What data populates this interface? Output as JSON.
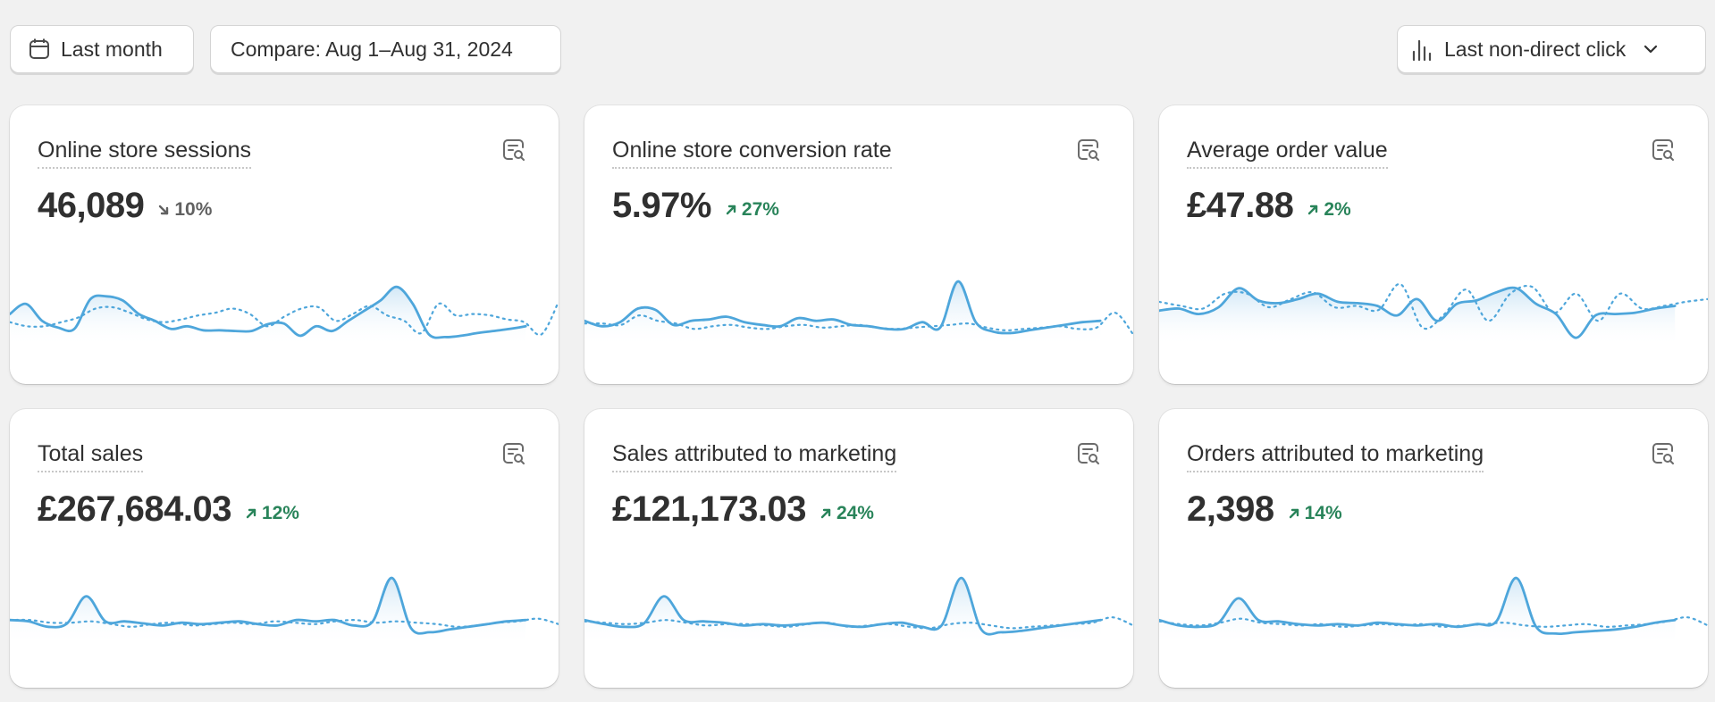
{
  "toolbar": {
    "date_label": "Last month",
    "compare_label": "Compare: Aug 1–Aug 31, 2024",
    "attribution_label": "Last non-direct click"
  },
  "colors": {
    "line": "#4ea6db",
    "fill_top": "#cfe6f6",
    "positive": "#29845a",
    "neutral": "#616161"
  },
  "cards": [
    {
      "title": "Online store sessions",
      "value": "46,089",
      "change": "10%",
      "direction": "down",
      "current": [
        0.4,
        0.55,
        0.3,
        0.2,
        0.18,
        0.62,
        0.66,
        0.6,
        0.4,
        0.3,
        0.18,
        0.22,
        0.16,
        0.16,
        0.15,
        0.15,
        0.25,
        0.26,
        0.08,
        0.22,
        0.15,
        0.3,
        0.45,
        0.6,
        0.8,
        0.55,
        0.1,
        0.06,
        0.08,
        0.12,
        0.15,
        0.18,
        0.22
      ],
      "previous": [
        0.28,
        0.22,
        0.22,
        0.28,
        0.35,
        0.48,
        0.5,
        0.42,
        0.32,
        0.28,
        0.32,
        0.38,
        0.42,
        0.48,
        0.4,
        0.22,
        0.36,
        0.48,
        0.5,
        0.3,
        0.4,
        0.52,
        0.38,
        0.3,
        0.12,
        0.55,
        0.38,
        0.4,
        0.38,
        0.32,
        0.28,
        0.1,
        0.58
      ]
    },
    {
      "title": "Online store conversion rate",
      "value": "5.97%",
      "change": "27%",
      "direction": "up",
      "current": [
        0.3,
        0.22,
        0.28,
        0.48,
        0.46,
        0.24,
        0.3,
        0.32,
        0.36,
        0.28,
        0.24,
        0.22,
        0.34,
        0.3,
        0.32,
        0.24,
        0.22,
        0.18,
        0.18,
        0.28,
        0.2,
        0.88,
        0.28,
        0.14,
        0.12,
        0.16,
        0.2,
        0.24,
        0.28,
        0.3
      ],
      "previous": [
        0.26,
        0.26,
        0.24,
        0.38,
        0.3,
        0.26,
        0.18,
        0.22,
        0.24,
        0.2,
        0.18,
        0.22,
        0.24,
        0.2,
        0.22,
        0.24,
        0.2,
        0.18,
        0.2,
        0.22,
        0.24,
        0.26,
        0.2,
        0.16,
        0.18,
        0.2,
        0.22,
        0.18,
        0.2,
        0.42,
        0.1
      ]
    },
    {
      "title": "Average order value",
      "value": "£47.88",
      "change": "2%",
      "direction": "up",
      "current": [
        0.45,
        0.48,
        0.4,
        0.5,
        0.78,
        0.6,
        0.56,
        0.62,
        0.7,
        0.58,
        0.56,
        0.52,
        0.38,
        0.62,
        0.3,
        0.55,
        0.6,
        0.72,
        0.78,
        0.55,
        0.4,
        0.05,
        0.38,
        0.4,
        0.42,
        0.48,
        0.52
      ],
      "previous": [
        0.58,
        0.52,
        0.48,
        0.7,
        0.7,
        0.5,
        0.62,
        0.72,
        0.5,
        0.52,
        0.46,
        0.84,
        0.2,
        0.4,
        0.76,
        0.3,
        0.7,
        0.8,
        0.42,
        0.7,
        0.3,
        0.7,
        0.48,
        0.52,
        0.58,
        0.62
      ]
    },
    {
      "title": "Total sales",
      "value": "£267,684.03",
      "change": "12%",
      "direction": "up",
      "current": [
        0.3,
        0.28,
        0.2,
        0.25,
        0.65,
        0.28,
        0.28,
        0.25,
        0.22,
        0.26,
        0.24,
        0.26,
        0.28,
        0.24,
        0.22,
        0.3,
        0.28,
        0.3,
        0.22,
        0.28,
        0.92,
        0.18,
        0.12,
        0.16,
        0.2,
        0.24,
        0.28,
        0.3
      ],
      "previous": [
        0.3,
        0.3,
        0.26,
        0.26,
        0.28,
        0.24,
        0.2,
        0.24,
        0.26,
        0.22,
        0.24,
        0.26,
        0.24,
        0.28,
        0.26,
        0.24,
        0.28,
        0.3,
        0.26,
        0.28,
        0.26,
        0.24,
        0.2,
        0.22,
        0.26,
        0.28,
        0.32,
        0.24
      ]
    },
    {
      "title": "Sales attributed to marketing",
      "value": "£121,173.03",
      "change": "24%",
      "direction": "up",
      "current": [
        0.3,
        0.24,
        0.2,
        0.25,
        0.65,
        0.3,
        0.28,
        0.26,
        0.22,
        0.24,
        0.22,
        0.24,
        0.26,
        0.22,
        0.2,
        0.24,
        0.26,
        0.2,
        0.22,
        0.92,
        0.16,
        0.12,
        0.14,
        0.18,
        0.22,
        0.26,
        0.3
      ],
      "previous": [
        0.28,
        0.26,
        0.24,
        0.26,
        0.3,
        0.26,
        0.22,
        0.24,
        0.24,
        0.22,
        0.2,
        0.24,
        0.26,
        0.2,
        0.22,
        0.24,
        0.2,
        0.18,
        0.24,
        0.26,
        0.22,
        0.18,
        0.2,
        0.22,
        0.24,
        0.26,
        0.34,
        0.22
      ]
    },
    {
      "title": "Orders attributed to marketing",
      "value": "2,398",
      "change": "14%",
      "direction": "up",
      "current": [
        0.3,
        0.22,
        0.2,
        0.26,
        0.62,
        0.3,
        0.28,
        0.24,
        0.22,
        0.24,
        0.22,
        0.26,
        0.24,
        0.22,
        0.24,
        0.2,
        0.24,
        0.28,
        0.92,
        0.2,
        0.1,
        0.12,
        0.14,
        0.16,
        0.2,
        0.26,
        0.3
      ],
      "previous": [
        0.28,
        0.24,
        0.22,
        0.26,
        0.32,
        0.26,
        0.24,
        0.22,
        0.24,
        0.2,
        0.22,
        0.24,
        0.22,
        0.24,
        0.2,
        0.22,
        0.24,
        0.26,
        0.22,
        0.2,
        0.22,
        0.24,
        0.2,
        0.22,
        0.24,
        0.28,
        0.34,
        0.22
      ]
    }
  ]
}
